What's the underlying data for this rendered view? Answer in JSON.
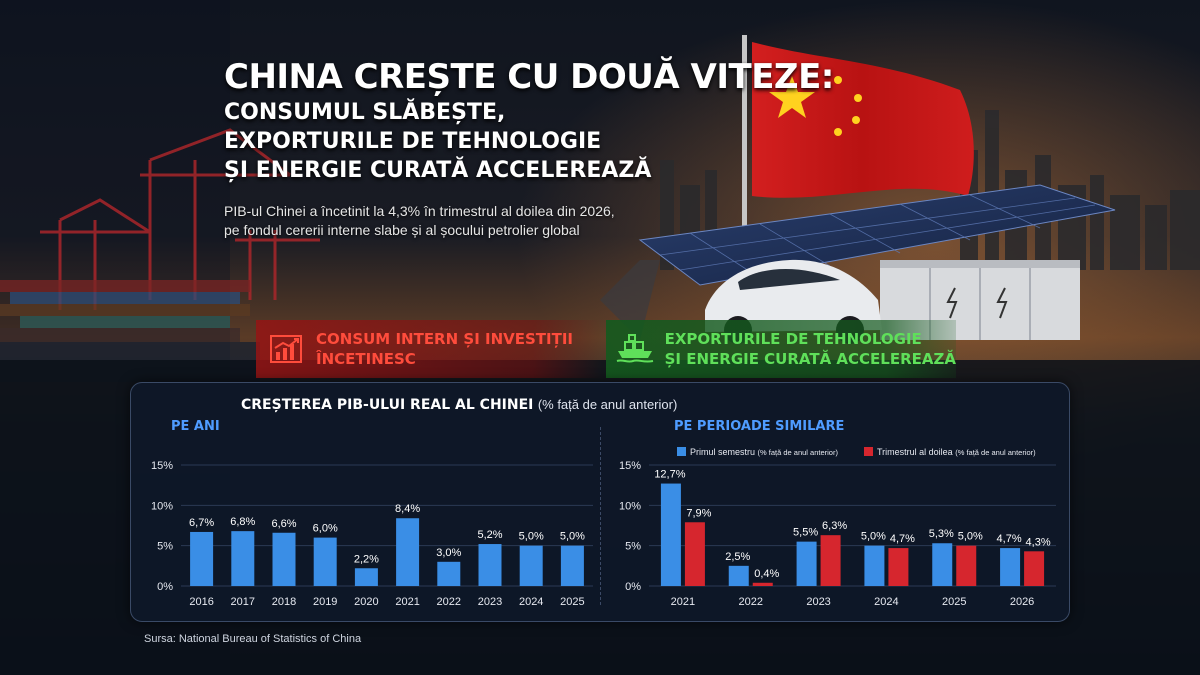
{
  "header": {
    "title": "CHINA CREȘTE CU DOUĂ VITEZE:",
    "subtitle_lines": [
      "CONSUMUL SLĂBEȘTE,",
      "EXPORTURILE DE TEHNOLOGIE",
      "ȘI ENERGIE CURATĂ ACCELEREAZĂ"
    ],
    "description_lines": [
      "PIB-ul Chinei a încetinit la 4,3% în trimestrul al doilea din 2026,",
      "pe fondul cererii interne slabe și al șocului petrolier global"
    ]
  },
  "banners": {
    "left": {
      "lines": [
        "CONSUM INTERN ȘI INVESTIȚII",
        "ÎNCETINESC"
      ],
      "icon": "declining-chart-icon",
      "color": "#ff4c3c"
    },
    "right": {
      "lines": [
        "EXPORTURILE DE TEHNOLOGIE",
        "ȘI ENERGIE CURATĂ ACCELEREAZĂ"
      ],
      "icon": "cargo-ship-icon",
      "color": "#5fe05a"
    }
  },
  "panel": {
    "title_bold": "CREȘTEREA PIB-ULUI REAL AL CHINEI",
    "title_note": "(% față de anul anterior)"
  },
  "colors": {
    "blue": "#3a8ee6",
    "red": "#d6262e",
    "label_blue": "#4f9cff"
  },
  "chart_data": [
    {
      "type": "bar",
      "title": "PE ANI",
      "categories": [
        "2016",
        "2017",
        "2018",
        "2019",
        "2020",
        "2021",
        "2022",
        "2023",
        "2024",
        "2025"
      ],
      "values": [
        6.7,
        6.8,
        6.6,
        6.0,
        2.2,
        8.4,
        3.0,
        5.2,
        5.0,
        5.0
      ],
      "value_labels": [
        "6,7%",
        "6,8%",
        "6,6%",
        "6,0%",
        "2,2%",
        "8,4%",
        "3,0%",
        "5,2%",
        "5,0%",
        "5,0%"
      ],
      "yticks": [
        "0%",
        "5%",
        "10%",
        "15%"
      ],
      "ylim": [
        0,
        15
      ],
      "grid": true
    },
    {
      "type": "bar",
      "title": "PE PERIOADE SIMILARE",
      "categories": [
        "2021",
        "2022",
        "2023",
        "2024",
        "2025",
        "2026"
      ],
      "series": [
        {
          "name": "Primul semestru",
          "note": "(% față de anul anterior)",
          "color": "#3a8ee6",
          "values": [
            12.7,
            2.5,
            5.5,
            5.0,
            5.3,
            4.7
          ],
          "value_labels": [
            "12,7%",
            "2,5%",
            "5,5%",
            "5,0%",
            "5,3%",
            "4,7%"
          ]
        },
        {
          "name": "Trimestrul al doilea",
          "note": "(% față de anul anterior)",
          "color": "#d6262e",
          "values": [
            7.9,
            0.4,
            6.3,
            4.7,
            5.0,
            4.3
          ],
          "value_labels": [
            "7,9%",
            "0,4%",
            "6,3%",
            "4,7%",
            "5,0%",
            "4,3%"
          ]
        }
      ],
      "yticks": [
        "0%",
        "5%",
        "10%",
        "15%"
      ],
      "ylim": [
        0,
        15
      ],
      "grid": true,
      "legend": "top"
    }
  ],
  "source": "Sursa: National Bureau of Statistics of China"
}
